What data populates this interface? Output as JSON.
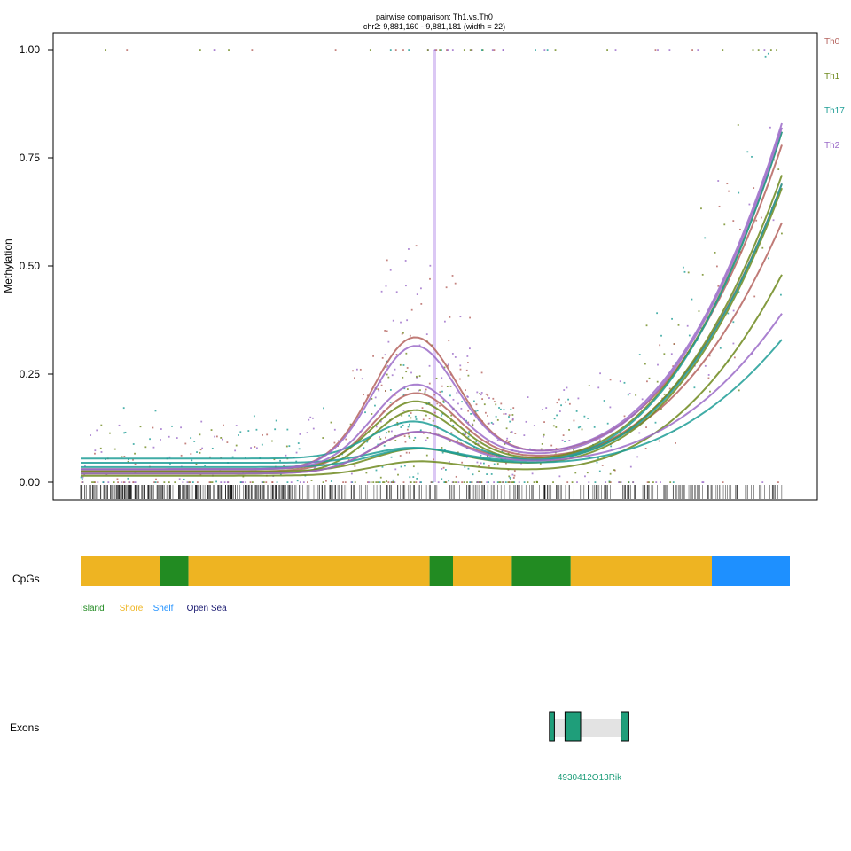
{
  "chart_data": {
    "type": "scatter",
    "title": "pairwise comparison: Th1.vs.Th0",
    "subtitle": "chr2: 9,881,160 - 9,881,181 (width = 22)",
    "ylabel": "Methylation",
    "xlim": [
      0,
      1
    ],
    "ylim": [
      0,
      1
    ],
    "y_ticks": [
      0,
      0.25,
      0.5,
      0.75,
      1.0
    ],
    "y_tick_labels": [
      "0.00",
      "0.25",
      "0.50",
      "0.75",
      "1.00"
    ],
    "highlight_region": {
      "start": 9881160,
      "end": 9881181,
      "color": "#c9a6ef"
    },
    "series": [
      {
        "name": "Th0",
        "color": "#b5645f"
      },
      {
        "name": "Th1",
        "color": "#6f8a1f"
      },
      {
        "name": "Th17",
        "color": "#1f9e96"
      },
      {
        "name": "Th2",
        "color": "#9b6bc8"
      }
    ],
    "smooth_curves": [
      {
        "group": "Th0",
        "left": 0.03,
        "peak": 0.34,
        "valley": 0.07,
        "right": 0.78
      },
      {
        "group": "Th0",
        "left": 0.025,
        "peak": 0.21,
        "valley": 0.06,
        "right": 0.6
      },
      {
        "group": "Th0",
        "left": 0.02,
        "peak": 0.12,
        "valley": 0.055,
        "right": 0.69
      },
      {
        "group": "Th1",
        "left": 0.03,
        "peak": 0.19,
        "valley": 0.055,
        "right": 0.81
      },
      {
        "group": "Th1",
        "left": 0.02,
        "peak": 0.17,
        "valley": 0.05,
        "right": 0.71
      },
      {
        "group": "Th1",
        "left": 0.015,
        "peak": 0.05,
        "valley": 0.03,
        "right": 0.48
      },
      {
        "group": "Th1",
        "left": 0.025,
        "peak": 0.08,
        "valley": 0.045,
        "right": 0.68
      },
      {
        "group": "Th17",
        "left": 0.055,
        "peak": 0.14,
        "valley": 0.05,
        "right": 0.81
      },
      {
        "group": "Th17",
        "left": 0.045,
        "peak": 0.08,
        "valley": 0.045,
        "right": 0.33
      },
      {
        "group": "Th17",
        "left": 0.035,
        "peak": 0.08,
        "valley": 0.05,
        "right": 0.69
      },
      {
        "group": "Th2",
        "left": 0.03,
        "peak": 0.32,
        "valley": 0.07,
        "right": 0.83
      },
      {
        "group": "Th2",
        "left": 0.03,
        "peak": 0.23,
        "valley": 0.065,
        "right": 0.82
      },
      {
        "group": "Th2",
        "left": 0.02,
        "peak": 0.12,
        "valley": 0.05,
        "right": 0.39
      }
    ],
    "cpg_track": {
      "label": "CpGs",
      "segments": [
        {
          "type": "Shore",
          "start": 0.0,
          "end": 0.112
        },
        {
          "type": "Island",
          "start": 0.112,
          "end": 0.152
        },
        {
          "type": "Shore",
          "start": 0.152,
          "end": 0.492
        },
        {
          "type": "Island",
          "start": 0.492,
          "end": 0.525
        },
        {
          "type": "Shore",
          "start": 0.525,
          "end": 0.608
        },
        {
          "type": "Island",
          "start": 0.608,
          "end": 0.691
        },
        {
          "type": "Shore",
          "start": 0.691,
          "end": 0.89
        },
        {
          "type": "Shelf",
          "start": 0.89,
          "end": 1.0
        }
      ],
      "legend": [
        {
          "label": "Island",
          "color": "#228b22"
        },
        {
          "label": "Shore",
          "color": "#eeb422"
        },
        {
          "label": "Shelf",
          "color": "#1e90ff"
        },
        {
          "label": "Open Sea",
          "color": "#191970"
        }
      ]
    },
    "exon_track": {
      "label": "Exons",
      "gene": "4930412O13Rik",
      "gene_color": "#1f9e7a",
      "exons": [
        {
          "start": 0.661,
          "end": 0.668
        },
        {
          "start": 0.683,
          "end": 0.705
        },
        {
          "start": 0.762,
          "end": 0.773
        }
      ],
      "intron": {
        "start": 0.661,
        "end": 0.773
      }
    }
  }
}
